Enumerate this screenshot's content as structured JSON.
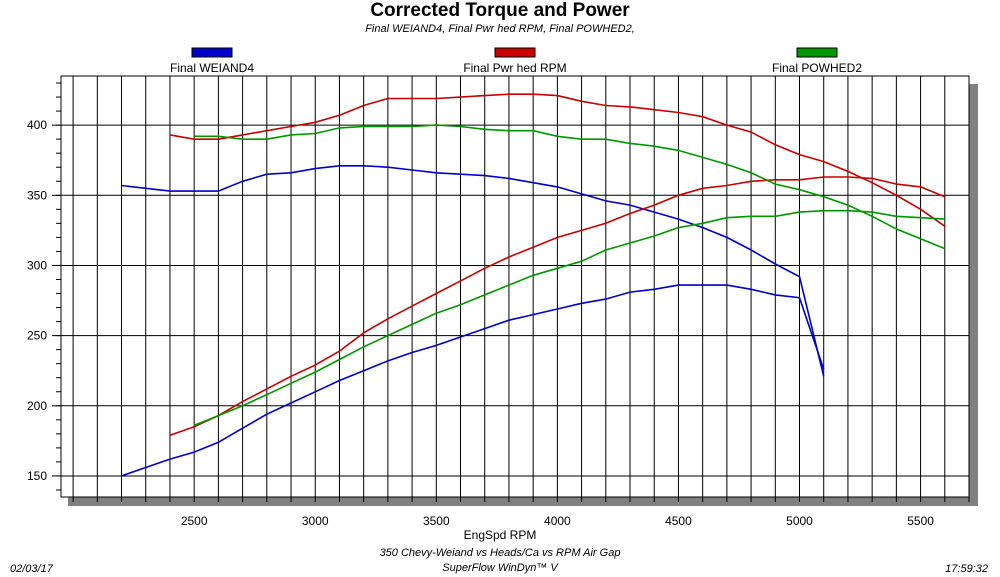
{
  "chart_data": {
    "type": "line",
    "title": "Corrected Torque and Power",
    "subtitle": "Final WEIAND4, Final Pwr hed RPM, Final POWHED2,",
    "xlabel": "EngSpd  RPM",
    "ylabel": "",
    "xlim": [
      1950,
      5700
    ],
    "ylim": [
      135,
      435
    ],
    "x_ticks": [
      2500,
      3000,
      3500,
      4000,
      4500,
      5000,
      5500
    ],
    "y_ticks": [
      150,
      200,
      250,
      300,
      350,
      400
    ],
    "grid": true,
    "legend_position": "top",
    "series": [
      {
        "name": "Final WEIAND4",
        "color": "#0000c8",
        "torque": [
          [
            2200,
            357
          ],
          [
            2300,
            355
          ],
          [
            2400,
            353
          ],
          [
            2500,
            353
          ],
          [
            2600,
            353
          ],
          [
            2700,
            360
          ],
          [
            2800,
            365
          ],
          [
            2900,
            366
          ],
          [
            3000,
            369
          ],
          [
            3100,
            371
          ],
          [
            3200,
            371
          ],
          [
            3300,
            370
          ],
          [
            3400,
            368
          ],
          [
            3500,
            366
          ],
          [
            3600,
            365
          ],
          [
            3700,
            364
          ],
          [
            3800,
            362
          ],
          [
            3900,
            359
          ],
          [
            4000,
            356
          ],
          [
            4100,
            351
          ],
          [
            4200,
            346
          ],
          [
            4300,
            343
          ],
          [
            4400,
            338
          ],
          [
            4500,
            333
          ],
          [
            4600,
            327
          ],
          [
            4700,
            320
          ],
          [
            4800,
            311
          ],
          [
            4900,
            301
          ],
          [
            5000,
            292
          ],
          [
            5100,
            221
          ]
        ],
        "power": [
          [
            2200,
            150
          ],
          [
            2300,
            156
          ],
          [
            2400,
            162
          ],
          [
            2500,
            167
          ],
          [
            2600,
            174
          ],
          [
            2700,
            184
          ],
          [
            2800,
            194
          ],
          [
            2900,
            202
          ],
          [
            3000,
            210
          ],
          [
            3100,
            218
          ],
          [
            3200,
            225
          ],
          [
            3300,
            232
          ],
          [
            3400,
            238
          ],
          [
            3500,
            243
          ],
          [
            3600,
            249
          ],
          [
            3700,
            255
          ],
          [
            3800,
            261
          ],
          [
            3900,
            265
          ],
          [
            4000,
            269
          ],
          [
            4100,
            273
          ],
          [
            4200,
            276
          ],
          [
            4300,
            281
          ],
          [
            4400,
            283
          ],
          [
            4500,
            286
          ],
          [
            4600,
            286
          ],
          [
            4700,
            286
          ],
          [
            4800,
            283
          ],
          [
            4900,
            279
          ],
          [
            5000,
            277
          ],
          [
            5100,
            226
          ]
        ]
      },
      {
        "name": "Final Pwr hed RPM",
        "color": "#c80000",
        "torque": [
          [
            2400,
            393
          ],
          [
            2500,
            390
          ],
          [
            2600,
            390
          ],
          [
            2700,
            393
          ],
          [
            2800,
            396
          ],
          [
            2900,
            399
          ],
          [
            3000,
            402
          ],
          [
            3100,
            407
          ],
          [
            3200,
            414
          ],
          [
            3300,
            419
          ],
          [
            3400,
            419
          ],
          [
            3500,
            419
          ],
          [
            3600,
            420
          ],
          [
            3700,
            421
          ],
          [
            3800,
            422
          ],
          [
            3900,
            422
          ],
          [
            4000,
            421
          ],
          [
            4100,
            417
          ],
          [
            4200,
            414
          ],
          [
            4300,
            413
          ],
          [
            4400,
            411
          ],
          [
            4500,
            409
          ],
          [
            4600,
            406
          ],
          [
            4700,
            400
          ],
          [
            4800,
            395
          ],
          [
            4900,
            386
          ],
          [
            5000,
            379
          ],
          [
            5100,
            374
          ],
          [
            5200,
            367
          ],
          [
            5300,
            359
          ],
          [
            5400,
            350
          ],
          [
            5500,
            340
          ],
          [
            5600,
            328
          ]
        ],
        "power": [
          [
            2400,
            179
          ],
          [
            2500,
            185
          ],
          [
            2600,
            193
          ],
          [
            2700,
            203
          ],
          [
            2800,
            212
          ],
          [
            2900,
            221
          ],
          [
            3000,
            229
          ],
          [
            3100,
            239
          ],
          [
            3200,
            252
          ],
          [
            3300,
            262
          ],
          [
            3400,
            271
          ],
          [
            3500,
            280
          ],
          [
            3600,
            289
          ],
          [
            3700,
            298
          ],
          [
            3800,
            306
          ],
          [
            3900,
            313
          ],
          [
            4000,
            320
          ],
          [
            4100,
            325
          ],
          [
            4200,
            330
          ],
          [
            4300,
            337
          ],
          [
            4400,
            343
          ],
          [
            4500,
            350
          ],
          [
            4600,
            355
          ],
          [
            4700,
            357
          ],
          [
            4800,
            360
          ],
          [
            4900,
            361
          ],
          [
            5000,
            361
          ],
          [
            5100,
            363
          ],
          [
            5200,
            363
          ],
          [
            5300,
            362
          ],
          [
            5400,
            358
          ],
          [
            5500,
            356
          ],
          [
            5600,
            349
          ]
        ]
      },
      {
        "name": "Final POWHED2",
        "color": "#009600",
        "torque": [
          [
            2500,
            392
          ],
          [
            2600,
            392
          ],
          [
            2700,
            390
          ],
          [
            2800,
            390
          ],
          [
            2900,
            393
          ],
          [
            3000,
            394
          ],
          [
            3100,
            398
          ],
          [
            3200,
            399
          ],
          [
            3300,
            399
          ],
          [
            3400,
            399
          ],
          [
            3500,
            400
          ],
          [
            3600,
            399
          ],
          [
            3700,
            397
          ],
          [
            3800,
            396
          ],
          [
            3900,
            396
          ],
          [
            4000,
            392
          ],
          [
            4100,
            390
          ],
          [
            4200,
            390
          ],
          [
            4300,
            387
          ],
          [
            4400,
            385
          ],
          [
            4500,
            382
          ],
          [
            4600,
            377
          ],
          [
            4700,
            372
          ],
          [
            4800,
            366
          ],
          [
            4900,
            358
          ],
          [
            5000,
            354
          ],
          [
            5100,
            349
          ],
          [
            5200,
            343
          ],
          [
            5300,
            335
          ],
          [
            5400,
            326
          ],
          [
            5500,
            319
          ],
          [
            5600,
            312
          ]
        ],
        "power": [
          [
            2500,
            186
          ],
          [
            2600,
            193
          ],
          [
            2700,
            200
          ],
          [
            2800,
            208
          ],
          [
            2900,
            216
          ],
          [
            3000,
            224
          ],
          [
            3100,
            233
          ],
          [
            3200,
            242
          ],
          [
            3300,
            250
          ],
          [
            3400,
            258
          ],
          [
            3500,
            266
          ],
          [
            3600,
            272
          ],
          [
            3700,
            279
          ],
          [
            3800,
            286
          ],
          [
            3900,
            293
          ],
          [
            4000,
            298
          ],
          [
            4100,
            303
          ],
          [
            4200,
            311
          ],
          [
            4300,
            316
          ],
          [
            4400,
            321
          ],
          [
            4500,
            327
          ],
          [
            4600,
            330
          ],
          [
            4700,
            334
          ],
          [
            4800,
            335
          ],
          [
            4900,
            335
          ],
          [
            5000,
            338
          ],
          [
            5100,
            339
          ],
          [
            5200,
            339
          ],
          [
            5300,
            338
          ],
          [
            5400,
            335
          ],
          [
            5500,
            334
          ],
          [
            5600,
            333
          ]
        ]
      }
    ]
  },
  "footer": {
    "description": "350 Chevy-Weiand vs Heads/Ca vs RPM Air Gap",
    "software": "SuperFlow WinDyn™ V",
    "date": "02/03/17",
    "time": "17:59:32"
  }
}
